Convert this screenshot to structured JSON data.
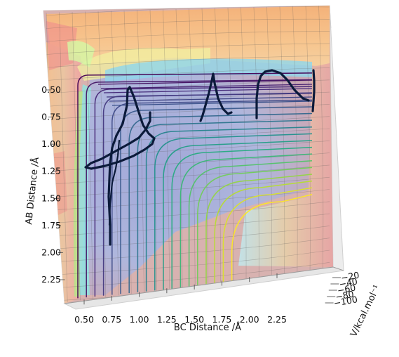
{
  "chart_data": {
    "type": "surface3d",
    "title": "",
    "xlabel": "BC Distance /Å",
    "ylabel": "AB Distance /Å",
    "zlabel": "V/kcal.mol⁻¹",
    "x_ticks": [
      "0.50",
      "0.75",
      "1.00",
      "1.25",
      "1.50",
      "1.75",
      "2.00",
      "2.25"
    ],
    "y_ticks": [
      "0.50",
      "0.75",
      "1.00",
      "1.25",
      "1.50",
      "1.75",
      "2.00",
      "2.25"
    ],
    "z_ticks": [
      "−20",
      "−40",
      "−60",
      "−80",
      "−100"
    ],
    "xlim": [
      0.35,
      2.45
    ],
    "ylim": [
      0.35,
      2.45
    ],
    "zlim": [
      -110,
      -10
    ],
    "surface_colormap": "plasma_pastel",
    "contour_colormap": "viridis",
    "contour_levels": [
      -100,
      -95,
      -90,
      -85,
      -80,
      -75,
      -70,
      -65,
      -60,
      -55,
      -50,
      -45,
      -40,
      -35,
      -30,
      -25,
      -20,
      -15,
      -10
    ],
    "trajectory_color": "#0b1a3a"
  }
}
